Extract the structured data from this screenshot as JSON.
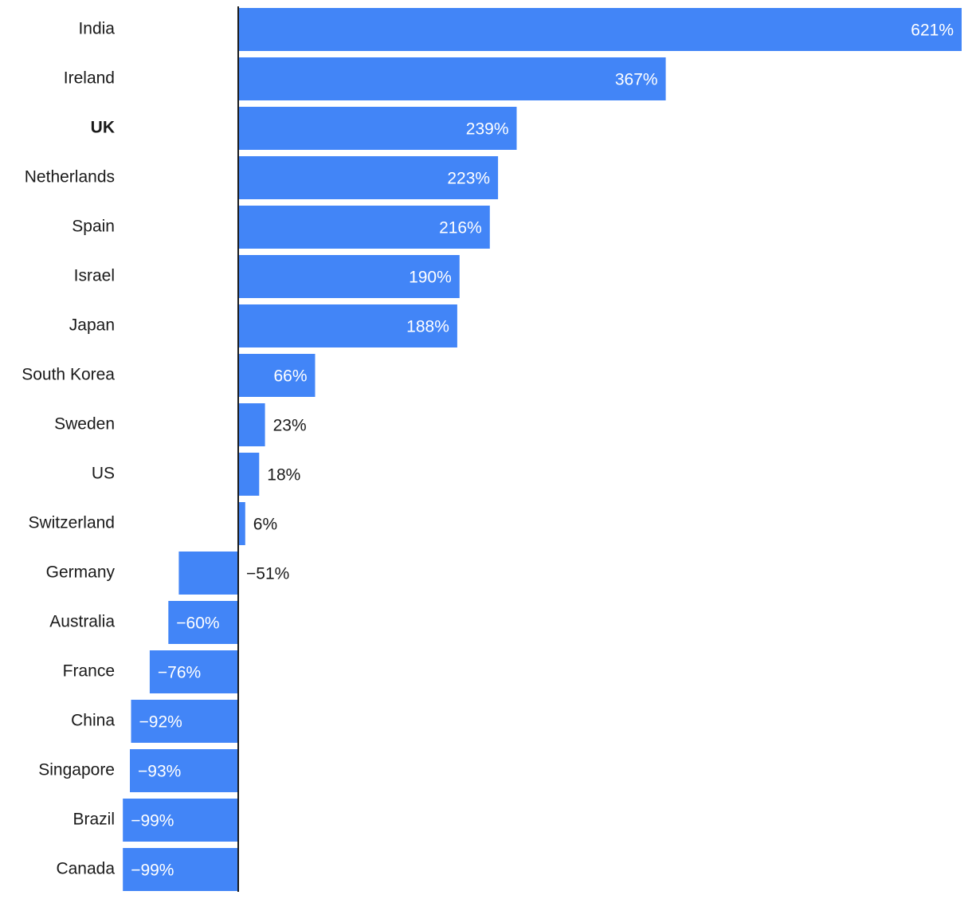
{
  "chart_data": {
    "type": "bar",
    "orientation": "horizontal",
    "categories": [
      "India",
      "Ireland",
      "UK",
      "Netherlands",
      "Spain",
      "Israel",
      "Japan",
      "South Korea",
      "Sweden",
      "US",
      "Switzerland",
      "Germany",
      "Australia",
      "France",
      "China",
      "Singapore",
      "Brazil",
      "Canada"
    ],
    "values": [
      621,
      367,
      239,
      223,
      216,
      190,
      188,
      66,
      23,
      18,
      6,
      -51,
      -60,
      -76,
      -92,
      -93,
      -99,
      -99
    ],
    "value_labels": [
      "621%",
      "367%",
      "239%",
      "223%",
      "216%",
      "190%",
      "188%",
      "66%",
      "23%",
      "18%",
      "6%",
      "−51%",
      "−60%",
      "−76%",
      "−92%",
      "−93%",
      "−99%",
      "−99%"
    ],
    "highlight_category": "UK",
    "title": "",
    "xlabel": "",
    "ylabel": "",
    "xlim": [
      -100,
      621
    ],
    "grid": false,
    "colors": {
      "bar": "#4285f7",
      "label_inside": "#ffffff",
      "label_outside": "#1a1a1a",
      "axis": "#1a1a1a",
      "text": "#1a1a1a"
    }
  }
}
